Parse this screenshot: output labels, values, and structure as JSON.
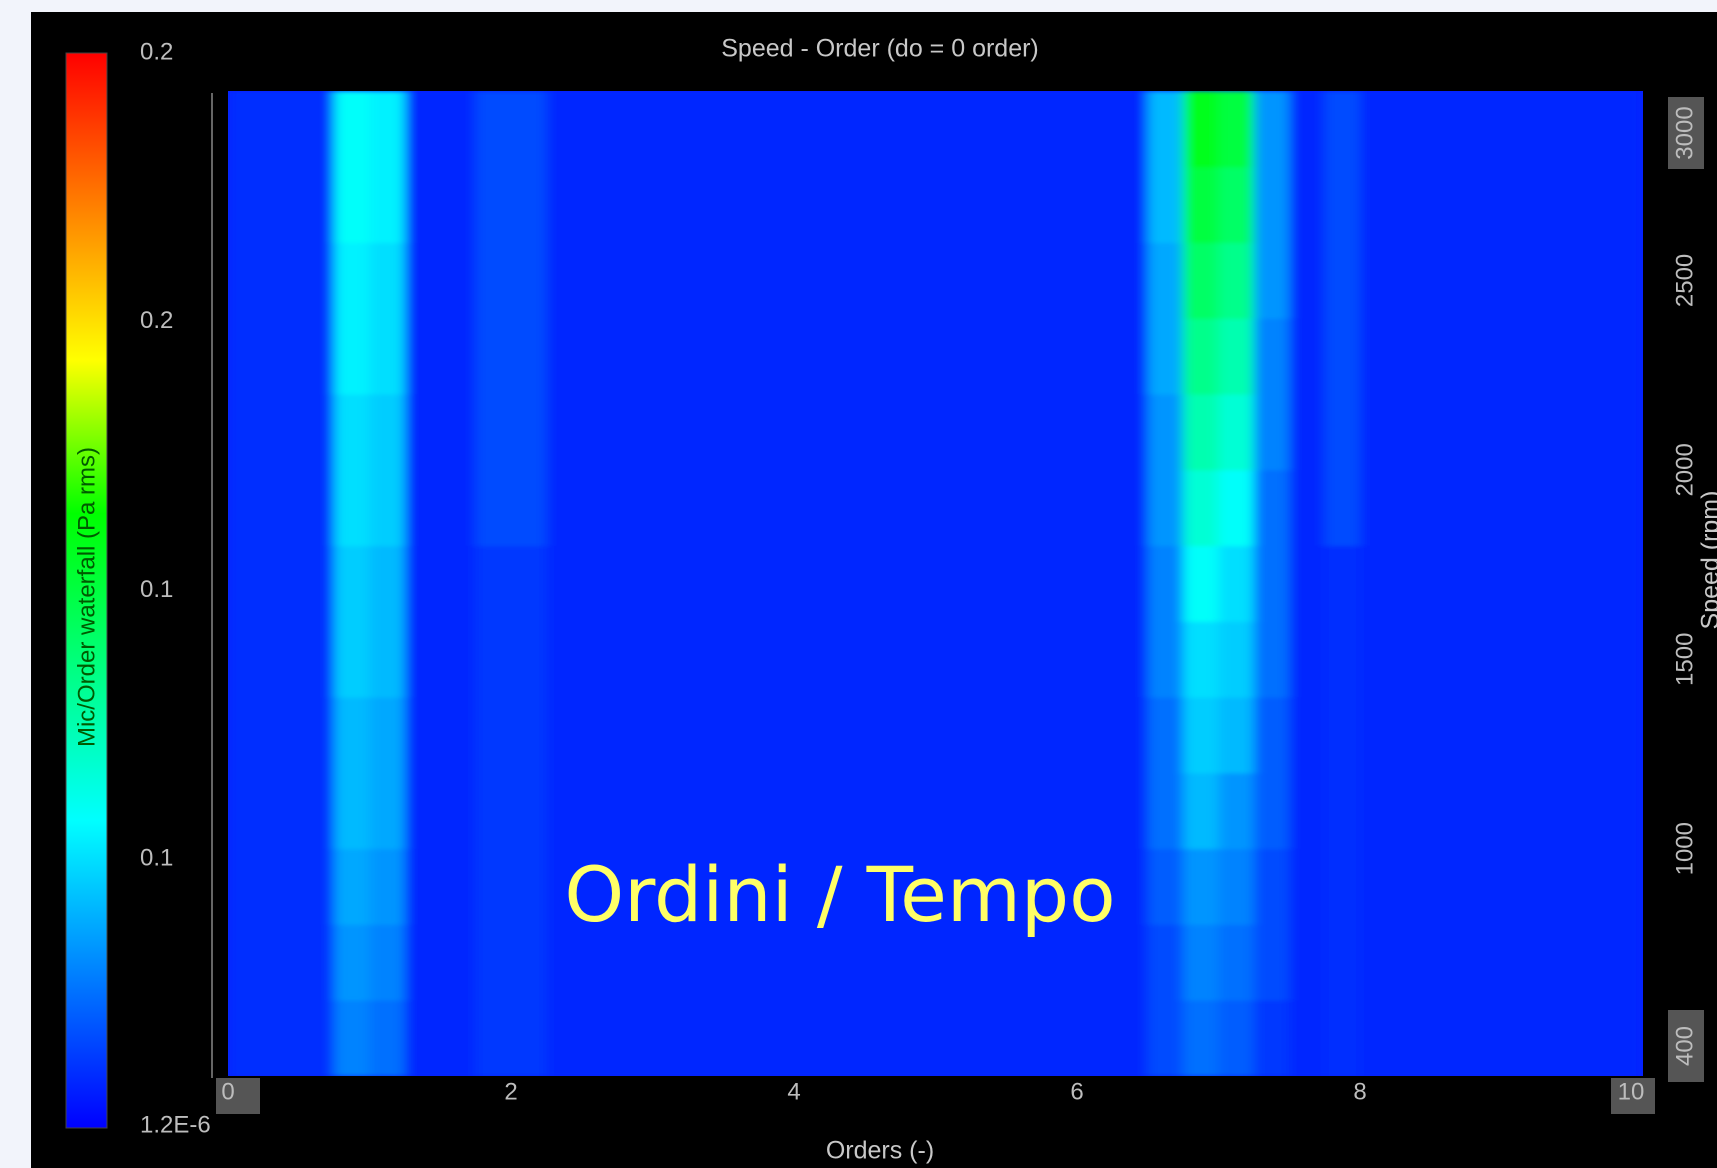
{
  "chart_data": {
    "type": "heatmap",
    "title": "Speed - Order (do = 0 order)",
    "xlabel": "Orders (-)",
    "ylabel": "Speed (rpm)",
    "annotation": "Ordini / Tempo",
    "xlim": [
      0,
      10
    ],
    "xticks": [
      0,
      2,
      4,
      6,
      8,
      10
    ],
    "ylim": [
      400,
      3000
    ],
    "yticks": [
      400,
      1000,
      1500,
      2000,
      2500,
      3000
    ],
    "x": [
      0.125,
      0.375,
      0.625,
      0.875,
      1.125,
      1.375,
      1.625,
      1.875,
      2.125,
      2.375,
      2.625,
      2.875,
      3.125,
      3.375,
      3.625,
      3.875,
      4.125,
      4.375,
      4.625,
      4.875,
      5.125,
      5.375,
      5.625,
      5.875,
      6.125,
      6.375,
      6.625,
      6.875,
      7.125,
      7.375,
      7.625,
      7.875,
      8.125,
      8.375,
      8.625,
      8.875,
      9.125,
      9.375,
      9.625,
      9.875
    ],
    "y": [
      500,
      700,
      900,
      1100,
      1300,
      1500,
      1700,
      1900,
      2100,
      2300,
      2500,
      2700,
      2900
    ],
    "values": [
      [
        0.012,
        0.012,
        0.012,
        0.035,
        0.03,
        0.01,
        0.01,
        0.015,
        0.015,
        0.01,
        0.01,
        0.01,
        0.01,
        0.01,
        0.01,
        0.01,
        0.01,
        0.01,
        0.01,
        0.01,
        0.01,
        0.01,
        0.01,
        0.01,
        0.01,
        0.01,
        0.02,
        0.03,
        0.025,
        0.015,
        0.01,
        0.012,
        0.01,
        0.01,
        0.01,
        0.01,
        0.01,
        0.01,
        0.01,
        0.01
      ],
      [
        0.012,
        0.012,
        0.012,
        0.04,
        0.035,
        0.01,
        0.01,
        0.015,
        0.015,
        0.01,
        0.01,
        0.01,
        0.01,
        0.01,
        0.01,
        0.01,
        0.01,
        0.01,
        0.01,
        0.01,
        0.01,
        0.01,
        0.01,
        0.01,
        0.01,
        0.01,
        0.02,
        0.035,
        0.03,
        0.02,
        0.01,
        0.012,
        0.01,
        0.01,
        0.01,
        0.01,
        0.01,
        0.01,
        0.01,
        0.01
      ],
      [
        0.012,
        0.012,
        0.012,
        0.045,
        0.04,
        0.01,
        0.01,
        0.015,
        0.015,
        0.01,
        0.01,
        0.01,
        0.01,
        0.01,
        0.01,
        0.01,
        0.01,
        0.01,
        0.01,
        0.01,
        0.01,
        0.01,
        0.01,
        0.01,
        0.01,
        0.01,
        0.025,
        0.04,
        0.035,
        0.02,
        0.01,
        0.012,
        0.01,
        0.01,
        0.01,
        0.01,
        0.01,
        0.01,
        0.01,
        0.01
      ],
      [
        0.012,
        0.012,
        0.012,
        0.05,
        0.045,
        0.01,
        0.01,
        0.015,
        0.015,
        0.01,
        0.01,
        0.01,
        0.01,
        0.01,
        0.01,
        0.01,
        0.01,
        0.01,
        0.01,
        0.01,
        0.01,
        0.01,
        0.01,
        0.01,
        0.01,
        0.01,
        0.03,
        0.05,
        0.04,
        0.025,
        0.01,
        0.012,
        0.01,
        0.01,
        0.01,
        0.01,
        0.01,
        0.01,
        0.01,
        0.01
      ],
      [
        0.012,
        0.012,
        0.012,
        0.05,
        0.045,
        0.01,
        0.01,
        0.015,
        0.015,
        0.01,
        0.01,
        0.01,
        0.01,
        0.01,
        0.01,
        0.01,
        0.01,
        0.01,
        0.01,
        0.01,
        0.01,
        0.01,
        0.01,
        0.01,
        0.01,
        0.01,
        0.03,
        0.055,
        0.05,
        0.025,
        0.01,
        0.012,
        0.01,
        0.01,
        0.01,
        0.01,
        0.01,
        0.01,
        0.01,
        0.01
      ],
      [
        0.012,
        0.012,
        0.012,
        0.055,
        0.05,
        0.01,
        0.01,
        0.015,
        0.015,
        0.01,
        0.01,
        0.01,
        0.01,
        0.01,
        0.01,
        0.01,
        0.01,
        0.01,
        0.01,
        0.01,
        0.01,
        0.01,
        0.01,
        0.01,
        0.01,
        0.01,
        0.035,
        0.06,
        0.055,
        0.03,
        0.01,
        0.012,
        0.01,
        0.01,
        0.01,
        0.01,
        0.01,
        0.01,
        0.01,
        0.01
      ],
      [
        0.012,
        0.012,
        0.012,
        0.055,
        0.05,
        0.01,
        0.01,
        0.015,
        0.015,
        0.01,
        0.01,
        0.01,
        0.01,
        0.01,
        0.01,
        0.01,
        0.01,
        0.01,
        0.01,
        0.01,
        0.01,
        0.01,
        0.01,
        0.01,
        0.01,
        0.01,
        0.035,
        0.07,
        0.06,
        0.03,
        0.01,
        0.012,
        0.01,
        0.01,
        0.01,
        0.01,
        0.01,
        0.01,
        0.01,
        0.01
      ],
      [
        0.012,
        0.012,
        0.012,
        0.06,
        0.055,
        0.01,
        0.01,
        0.02,
        0.02,
        0.01,
        0.01,
        0.01,
        0.01,
        0.01,
        0.01,
        0.01,
        0.01,
        0.01,
        0.01,
        0.01,
        0.01,
        0.01,
        0.01,
        0.01,
        0.01,
        0.01,
        0.04,
        0.08,
        0.07,
        0.03,
        0.01,
        0.02,
        0.01,
        0.01,
        0.01,
        0.01,
        0.01,
        0.01,
        0.01,
        0.01
      ],
      [
        0.012,
        0.012,
        0.012,
        0.06,
        0.055,
        0.01,
        0.01,
        0.02,
        0.02,
        0.01,
        0.01,
        0.01,
        0.01,
        0.01,
        0.01,
        0.01,
        0.01,
        0.01,
        0.01,
        0.01,
        0.01,
        0.01,
        0.01,
        0.01,
        0.01,
        0.01,
        0.04,
        0.09,
        0.08,
        0.035,
        0.01,
        0.02,
        0.01,
        0.01,
        0.01,
        0.01,
        0.01,
        0.01,
        0.01,
        0.01
      ],
      [
        0.012,
        0.012,
        0.012,
        0.065,
        0.06,
        0.01,
        0.01,
        0.02,
        0.02,
        0.01,
        0.01,
        0.01,
        0.01,
        0.01,
        0.01,
        0.01,
        0.01,
        0.01,
        0.01,
        0.01,
        0.01,
        0.01,
        0.01,
        0.01,
        0.01,
        0.01,
        0.045,
        0.1,
        0.09,
        0.035,
        0.01,
        0.02,
        0.01,
        0.01,
        0.01,
        0.01,
        0.01,
        0.01,
        0.01,
        0.01
      ],
      [
        0.012,
        0.012,
        0.012,
        0.065,
        0.06,
        0.01,
        0.01,
        0.02,
        0.02,
        0.01,
        0.01,
        0.01,
        0.01,
        0.01,
        0.01,
        0.01,
        0.01,
        0.01,
        0.01,
        0.01,
        0.01,
        0.01,
        0.01,
        0.01,
        0.01,
        0.01,
        0.045,
        0.11,
        0.1,
        0.04,
        0.01,
        0.02,
        0.01,
        0.01,
        0.01,
        0.01,
        0.01,
        0.01,
        0.01,
        0.01
      ],
      [
        0.012,
        0.012,
        0.012,
        0.07,
        0.065,
        0.01,
        0.01,
        0.02,
        0.02,
        0.01,
        0.01,
        0.01,
        0.01,
        0.01,
        0.01,
        0.01,
        0.01,
        0.01,
        0.01,
        0.01,
        0.01,
        0.01,
        0.01,
        0.01,
        0.01,
        0.01,
        0.05,
        0.12,
        0.11,
        0.04,
        0.01,
        0.02,
        0.01,
        0.01,
        0.01,
        0.01,
        0.01,
        0.01,
        0.01,
        0.01
      ],
      [
        0.012,
        0.012,
        0.012,
        0.07,
        0.065,
        0.01,
        0.01,
        0.02,
        0.02,
        0.01,
        0.01,
        0.01,
        0.01,
        0.01,
        0.01,
        0.01,
        0.01,
        0.01,
        0.01,
        0.01,
        0.01,
        0.01,
        0.01,
        0.01,
        0.01,
        0.01,
        0.05,
        0.13,
        0.12,
        0.04,
        0.01,
        0.02,
        0.01,
        0.01,
        0.01,
        0.01,
        0.01,
        0.01,
        0.01,
        0.01
      ]
    ],
    "colormap": [
      "#0000ff",
      "#0080ff",
      "#00ffff",
      "#00ff80",
      "#00ff00",
      "#ffff00",
      "#ff8000",
      "#ff0000"
    ],
    "colorbar": {
      "label": "Mic/Order waterfall (Pa rms)",
      "lim": [
        1.2e-06,
        0.24
      ],
      "ticks": [
        {
          "value": 0.24,
          "label": "0.2"
        },
        {
          "value": 0.18,
          "label": "0.2"
        },
        {
          "value": 0.12,
          "label": "0.1"
        },
        {
          "value": 0.06,
          "label": "0.1"
        },
        {
          "value": 1.2e-06,
          "label": "1.2E-6"
        }
      ]
    }
  }
}
